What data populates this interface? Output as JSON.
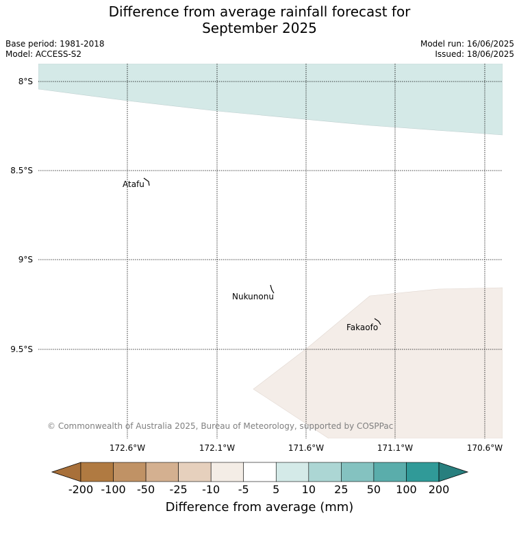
{
  "title_line1": "Difference from average rainfall forecast for",
  "title_line2": "September 2025",
  "meta": {
    "base_period": "Base period: 1981-2018",
    "model": "Model: ACCESS-S2",
    "model_run": "Model run: 16/06/2025",
    "issued": "Issued: 18/06/2025"
  },
  "map": {
    "lat_labels": [
      "8°S",
      "8.5°S",
      "9°S",
      "9.5°S"
    ],
    "lon_labels": [
      "172.6°W",
      "172.1°W",
      "171.6°W",
      "171.1°W",
      "170.6°W"
    ],
    "places": [
      "Atafu",
      "Nukunonu",
      "Fakaofo"
    ],
    "copyright": "© Commonwealth of Australia 2025, Bureau of Meteorology, supported by COSPPac"
  },
  "colorbar": {
    "labels": [
      "-200",
      "-100",
      "-50",
      "-25",
      "-10",
      "-5",
      "5",
      "10",
      "25",
      "50",
      "100",
      "200"
    ],
    "colors": [
      "#a8703a",
      "#b07a41",
      "#c09265",
      "#d4b090",
      "#e6d0bd",
      "#f4ede6",
      "#ffffff",
      "#d4eae8",
      "#acd6d4",
      "#84c2c0",
      "#5aadab",
      "#309a98",
      "#287f7e"
    ],
    "title": "Difference from average (mm)"
  }
}
